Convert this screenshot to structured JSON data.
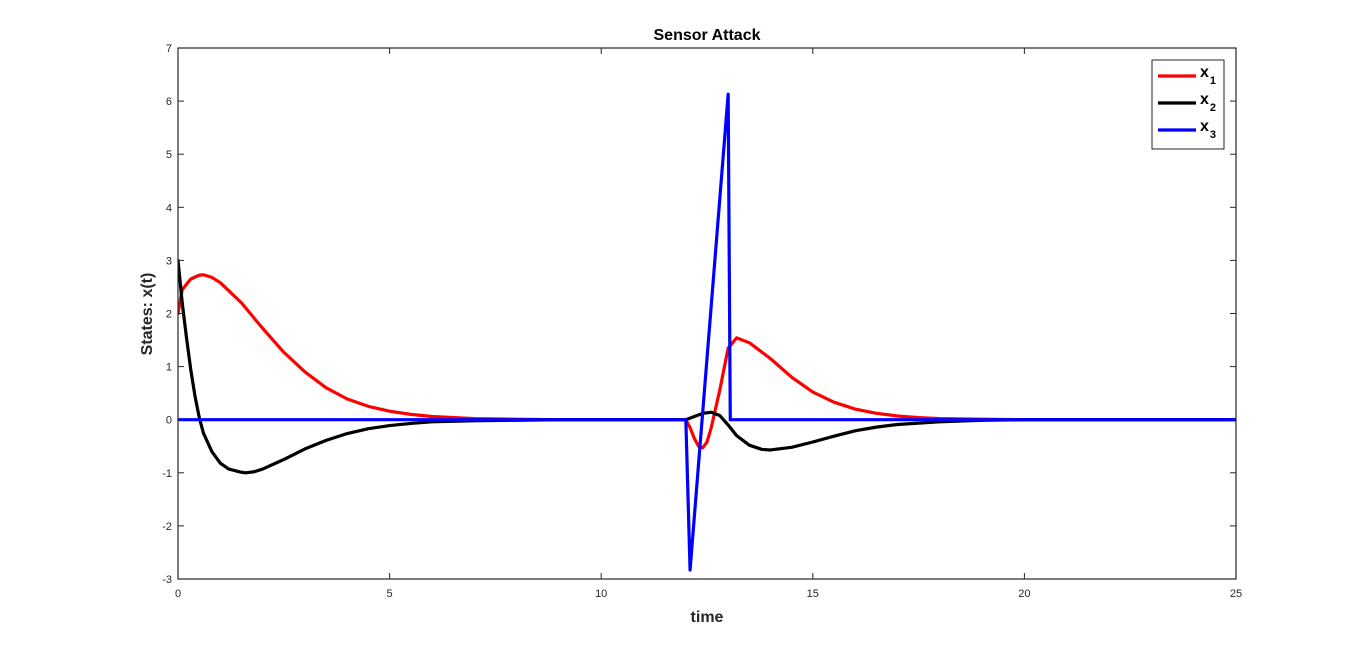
{
  "chart_data": {
    "type": "line",
    "title": "Sensor Attack",
    "xlabel": "time",
    "ylabel": "States: x(t)",
    "xlim": [
      0,
      25
    ],
    "ylim": [
      -3,
      7
    ],
    "xticks": [
      0,
      5,
      10,
      15,
      20,
      25
    ],
    "yticks": [
      -3,
      -2,
      -1,
      0,
      1,
      2,
      3,
      4,
      5,
      6,
      7
    ],
    "grid": false,
    "legend_position": "top-right",
    "series": [
      {
        "name": "x",
        "subscript": "1",
        "color": "#ff0000",
        "x": [
          0,
          0.1,
          0.3,
          0.5,
          0.6,
          0.8,
          1.0,
          1.5,
          2.0,
          2.5,
          3.0,
          3.5,
          4.0,
          4.5,
          5.0,
          5.5,
          6.0,
          7.0,
          8.0,
          9.0,
          10.0,
          11.0,
          12.0,
          12.1,
          12.2,
          12.3,
          12.4,
          12.5,
          12.6,
          12.8,
          13.0,
          13.2,
          13.5,
          14.0,
          14.5,
          15.0,
          15.5,
          16.0,
          16.5,
          17.0,
          17.5,
          18.0,
          19.0,
          20.0,
          21.0,
          22.0,
          23.0,
          24.0,
          25.0
        ],
        "values": [
          2.0,
          2.45,
          2.65,
          2.72,
          2.73,
          2.68,
          2.58,
          2.2,
          1.72,
          1.27,
          0.9,
          0.6,
          0.39,
          0.25,
          0.16,
          0.1,
          0.06,
          0.02,
          0.01,
          0.0,
          0.0,
          0.0,
          0.0,
          -0.15,
          -0.35,
          -0.5,
          -0.53,
          -0.42,
          -0.15,
          0.55,
          1.35,
          1.54,
          1.45,
          1.15,
          0.8,
          0.52,
          0.33,
          0.2,
          0.12,
          0.07,
          0.04,
          0.02,
          0.01,
          0.0,
          0.0,
          0.0,
          0.0,
          0.0,
          0.0
        ]
      },
      {
        "name": "x",
        "subscript": "2",
        "color": "#000000",
        "x": [
          0,
          0.1,
          0.2,
          0.3,
          0.4,
          0.5,
          0.6,
          0.8,
          1.0,
          1.2,
          1.5,
          1.6,
          1.8,
          2.0,
          2.5,
          3.0,
          3.5,
          4.0,
          4.5,
          5.0,
          5.5,
          6.0,
          7.0,
          8.0,
          9.0,
          10.0,
          11.0,
          12.0,
          12.2,
          12.4,
          12.6,
          12.8,
          13.0,
          13.2,
          13.5,
          13.8,
          14.0,
          14.5,
          15.0,
          15.5,
          16.0,
          16.5,
          17.0,
          18.0,
          19.0,
          20.0,
          21.0,
          22.0,
          23.0,
          24.0,
          25.0
        ],
        "values": [
          3.0,
          2.2,
          1.55,
          0.95,
          0.45,
          0.05,
          -0.25,
          -0.6,
          -0.82,
          -0.93,
          -0.99,
          -1.0,
          -0.98,
          -0.93,
          -0.75,
          -0.55,
          -0.39,
          -0.26,
          -0.17,
          -0.11,
          -0.07,
          -0.04,
          -0.02,
          -0.01,
          0.0,
          0.0,
          0.0,
          0.0,
          0.06,
          0.12,
          0.14,
          0.08,
          -0.1,
          -0.3,
          -0.48,
          -0.56,
          -0.57,
          -0.52,
          -0.42,
          -0.31,
          -0.21,
          -0.14,
          -0.09,
          -0.04,
          -0.01,
          0.0,
          0.0,
          0.0,
          0.0,
          0.0,
          0.0
        ]
      },
      {
        "name": "x",
        "subscript": "3",
        "color": "#0000ff",
        "x": [
          0,
          12.0,
          12.1,
          13.0,
          13.05,
          25.0
        ],
        "values": [
          0.0,
          0.0,
          -2.83,
          6.13,
          0.0,
          0.0
        ]
      }
    ]
  }
}
